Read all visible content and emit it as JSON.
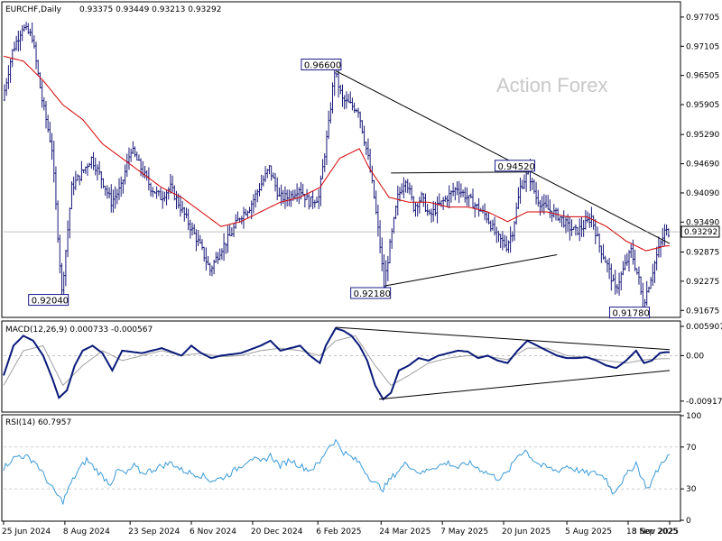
{
  "header": {
    "symbol": "EURCHF,Daily",
    "ohlc": "0.93375 0.93449 0.93213 0.93292"
  },
  "watermark": "Action Forex",
  "colors": {
    "bars": "#1a1a7a",
    "ma": "#d40000",
    "macd": "#0b1a7a",
    "signal": "#a0a0a0",
    "rsi": "#3a9ad9",
    "trend": "#000000",
    "grid": "#b0b0b0"
  },
  "chart_data": [
    {
      "type": "ohlc",
      "name": "price",
      "title": "EURCHF,Daily",
      "ylim": [
        0.9155,
        0.98
      ],
      "y_ticks": [
        "0.97705",
        "0.97105",
        "0.96505",
        "0.95905",
        "0.95290",
        "0.94690",
        "0.94090",
        "0.93490",
        "0.92875",
        "0.92275",
        "0.91675"
      ],
      "y_tick_values": [
        0.97705,
        0.97105,
        0.96505,
        0.95905,
        0.9529,
        0.9469,
        0.9409,
        0.9349,
        0.92875,
        0.92275,
        0.91675
      ],
      "current_price": "0.93292",
      "current_value": 0.93292,
      "price_path": [
        [
          0,
          0.96
        ],
        [
          5,
          0.97
        ],
        [
          10,
          0.975
        ],
        [
          15,
          0.973
        ],
        [
          20,
          0.96
        ],
        [
          25,
          0.95
        ],
        [
          30,
          0.9205
        ],
        [
          35,
          0.942
        ],
        [
          40,
          0.945
        ],
        [
          45,
          0.948
        ],
        [
          50,
          0.944
        ],
        [
          55,
          0.939
        ],
        [
          60,
          0.942
        ],
        [
          65,
          0.95
        ],
        [
          70,
          0.946
        ],
        [
          75,
          0.942
        ],
        [
          80,
          0.94
        ],
        [
          85,
          0.942
        ],
        [
          90,
          0.938
        ],
        [
          95,
          0.934
        ],
        [
          100,
          0.93
        ],
        [
          105,
          0.925
        ],
        [
          110,
          0.929
        ],
        [
          115,
          0.932
        ],
        [
          120,
          0.936
        ],
        [
          125,
          0.938
        ],
        [
          130,
          0.942
        ],
        [
          135,
          0.946
        ],
        [
          140,
          0.94
        ],
        [
          145,
          0.94
        ],
        [
          150,
          0.942
        ],
        [
          155,
          0.939
        ],
        [
          160,
          0.94
        ],
        [
          165,
          0.955
        ],
        [
          168,
          0.966
        ],
        [
          172,
          0.96
        ],
        [
          176,
          0.959
        ],
        [
          180,
          0.958
        ],
        [
          185,
          0.948
        ],
        [
          188,
          0.94
        ],
        [
          191,
          0.93
        ],
        [
          193,
          0.9218
        ],
        [
          196,
          0.93
        ],
        [
          200,
          0.94
        ],
        [
          204,
          0.944
        ],
        [
          208,
          0.938
        ],
        [
          212,
          0.94
        ],
        [
          216,
          0.936
        ],
        [
          220,
          0.938
        ],
        [
          225,
          0.94
        ],
        [
          230,
          0.942
        ],
        [
          235,
          0.94
        ],
        [
          240,
          0.938
        ],
        [
          245,
          0.936
        ],
        [
          250,
          0.932
        ],
        [
          255,
          0.93
        ],
        [
          258,
          0.933
        ],
        [
          262,
          0.942
        ],
        [
          266,
          0.9452
        ],
        [
          270,
          0.94
        ],
        [
          274,
          0.938
        ],
        [
          278,
          0.937
        ],
        [
          282,
          0.936
        ],
        [
          286,
          0.934
        ],
        [
          290,
          0.933
        ],
        [
          294,
          0.934
        ],
        [
          298,
          0.936
        ],
        [
          302,
          0.93
        ],
        [
          306,
          0.926
        ],
        [
          310,
          0.921
        ],
        [
          314,
          0.925
        ],
        [
          318,
          0.929
        ],
        [
          322,
          0.923
        ],
        [
          324,
          0.9178
        ],
        [
          327,
          0.922
        ],
        [
          331,
          0.928
        ],
        [
          335,
          0.9329
        ]
      ],
      "ma_path": [
        [
          0,
          0.969
        ],
        [
          10,
          0.968
        ],
        [
          20,
          0.964
        ],
        [
          30,
          0.959
        ],
        [
          40,
          0.956
        ],
        [
          50,
          0.951
        ],
        [
          60,
          0.948
        ],
        [
          70,
          0.945
        ],
        [
          80,
          0.942
        ],
        [
          90,
          0.94
        ],
        [
          100,
          0.937
        ],
        [
          110,
          0.934
        ],
        [
          120,
          0.935
        ],
        [
          130,
          0.937
        ],
        [
          140,
          0.939
        ],
        [
          150,
          0.94
        ],
        [
          160,
          0.942
        ],
        [
          170,
          0.948
        ],
        [
          180,
          0.95
        ],
        [
          185,
          0.946
        ],
        [
          195,
          0.94
        ],
        [
          205,
          0.939
        ],
        [
          215,
          0.939
        ],
        [
          225,
          0.938
        ],
        [
          235,
          0.938
        ],
        [
          245,
          0.937
        ],
        [
          255,
          0.935
        ],
        [
          265,
          0.937
        ],
        [
          275,
          0.937
        ],
        [
          285,
          0.936
        ],
        [
          295,
          0.936
        ],
        [
          305,
          0.934
        ],
        [
          315,
          0.931
        ],
        [
          325,
          0.929
        ],
        [
          335,
          0.93
        ]
      ],
      "labels": [
        {
          "text": "0.96600",
          "i": 168,
          "value": 0.966
        },
        {
          "text": "0.94520",
          "i": 266,
          "value": 0.9452
        },
        {
          "text": "0.92040",
          "i": 30,
          "value": 0.9204
        },
        {
          "text": "0.92180",
          "i": 193,
          "value": 0.9218
        },
        {
          "text": "0.91780",
          "i": 324,
          "value": 0.9178
        }
      ],
      "trendlines": [
        {
          "from": [
            168,
            0.966
          ],
          "to": [
            337,
            0.9305
          ]
        },
        {
          "from": [
            193,
            0.9218
          ],
          "to": [
            280,
            0.9282
          ]
        },
        {
          "from": [
            196,
            0.945
          ],
          "to": [
            266,
            0.9452
          ]
        }
      ]
    },
    {
      "type": "line",
      "name": "macd",
      "title": "MACD(12,26,9) 0.000733 -0.000567",
      "ylim": [
        -0.0112,
        0.0068
      ],
      "y_ticks": [
        "0.005907",
        "0.00",
        "-0.009175"
      ],
      "y_tick_values": [
        0.005907,
        0,
        -0.009175
      ],
      "macd_path": [
        [
          0,
          -0.004
        ],
        [
          5,
          0.002
        ],
        [
          10,
          0.004
        ],
        [
          15,
          0.003
        ],
        [
          20,
          0.0
        ],
        [
          25,
          -0.005
        ],
        [
          28,
          -0.0085
        ],
        [
          32,
          -0.007
        ],
        [
          36,
          -0.002
        ],
        [
          40,
          0.001
        ],
        [
          45,
          0.002
        ],
        [
          50,
          0.0005
        ],
        [
          55,
          -0.003
        ],
        [
          60,
          0.001
        ],
        [
          70,
          0.0005
        ],
        [
          80,
          0.0015
        ],
        [
          90,
          0.0
        ],
        [
          95,
          0.002
        ],
        [
          100,
          0.0005
        ],
        [
          105,
          -0.0005
        ],
        [
          110,
          0.0
        ],
        [
          120,
          0.0005
        ],
        [
          130,
          0.002
        ],
        [
          135,
          0.003
        ],
        [
          140,
          0.001
        ],
        [
          150,
          0.002
        ],
        [
          155,
          0.0
        ],
        [
          160,
          -0.0015
        ],
        [
          163,
          0.002
        ],
        [
          168,
          0.0055
        ],
        [
          172,
          0.005
        ],
        [
          176,
          0.004
        ],
        [
          180,
          0.002
        ],
        [
          184,
          -0.001
        ],
        [
          188,
          -0.006
        ],
        [
          192,
          -0.0088
        ],
        [
          196,
          -0.0075
        ],
        [
          200,
          -0.003
        ],
        [
          205,
          -0.002
        ],
        [
          210,
          -0.0005
        ],
        [
          215,
          -0.001
        ],
        [
          220,
          0.0
        ],
        [
          225,
          0.0005
        ],
        [
          230,
          0.001
        ],
        [
          235,
          0.0008
        ],
        [
          240,
          -0.0005
        ],
        [
          245,
          0.0
        ],
        [
          250,
          -0.001
        ],
        [
          255,
          -0.0015
        ],
        [
          260,
          0.001
        ],
        [
          265,
          0.003
        ],
        [
          270,
          0.002
        ],
        [
          275,
          0.001
        ],
        [
          280,
          0.0
        ],
        [
          285,
          -0.0005
        ],
        [
          290,
          -0.0005
        ],
        [
          295,
          -0.0003
        ],
        [
          300,
          -0.001
        ],
        [
          305,
          -0.002
        ],
        [
          310,
          -0.0025
        ],
        [
          315,
          -0.001
        ],
        [
          320,
          0.001
        ],
        [
          324,
          -0.0015
        ],
        [
          328,
          -0.001
        ],
        [
          332,
          0.0005
        ],
        [
          335,
          0.0007
        ]
      ],
      "signal_path": [
        [
          0,
          -0.006
        ],
        [
          10,
          0.001
        ],
        [
          20,
          0.002
        ],
        [
          30,
          -0.006
        ],
        [
          40,
          -0.002
        ],
        [
          50,
          0.001
        ],
        [
          60,
          -0.001
        ],
        [
          70,
          0.0
        ],
        [
          80,
          0.001
        ],
        [
          90,
          0.0
        ],
        [
          100,
          0.0005
        ],
        [
          110,
          -0.0002
        ],
        [
          120,
          0.0
        ],
        [
          130,
          0.001
        ],
        [
          140,
          0.0015
        ],
        [
          150,
          0.001
        ],
        [
          160,
          0.0
        ],
        [
          168,
          0.003
        ],
        [
          178,
          0.004
        ],
        [
          188,
          -0.002
        ],
        [
          196,
          -0.006
        ],
        [
          205,
          -0.004
        ],
        [
          215,
          -0.0015
        ],
        [
          225,
          -0.0005
        ],
        [
          235,
          0.0
        ],
        [
          245,
          -0.0002
        ],
        [
          255,
          -0.0008
        ],
        [
          265,
          0.0015
        ],
        [
          275,
          0.0015
        ],
        [
          285,
          0.0
        ],
        [
          295,
          -0.0004
        ],
        [
          305,
          -0.001
        ],
        [
          315,
          -0.0015
        ],
        [
          325,
          -0.0008
        ],
        [
          335,
          -0.0006
        ]
      ],
      "trendlines": [
        {
          "from": [
            168,
            0.0057
          ],
          "to": [
            337,
            0.0012
          ]
        },
        {
          "from": [
            190,
            -0.0088
          ],
          "to": [
            337,
            -0.003
          ]
        }
      ]
    },
    {
      "type": "line",
      "name": "rsi",
      "title": "RSI(14) 60.7957",
      "ylim": [
        0,
        100
      ],
      "y_ticks": [
        "100",
        "70",
        "30",
        "0"
      ],
      "y_tick_values": [
        100,
        70,
        30,
        0
      ],
      "levels": [
        70,
        30
      ],
      "rsi_path": [
        [
          0,
          50
        ],
        [
          4,
          58
        ],
        [
          8,
          62
        ],
        [
          12,
          60
        ],
        [
          16,
          56
        ],
        [
          20,
          44
        ],
        [
          24,
          32
        ],
        [
          28,
          22
        ],
        [
          30,
          18
        ],
        [
          34,
          35
        ],
        [
          38,
          48
        ],
        [
          42,
          58
        ],
        [
          46,
          50
        ],
        [
          50,
          42
        ],
        [
          54,
          35
        ],
        [
          58,
          48
        ],
        [
          62,
          44
        ],
        [
          66,
          52
        ],
        [
          70,
          45
        ],
        [
          75,
          48
        ],
        [
          80,
          52
        ],
        [
          85,
          55
        ],
        [
          90,
          48
        ],
        [
          95,
          45
        ],
        [
          100,
          43
        ],
        [
          105,
          38
        ],
        [
          110,
          40
        ],
        [
          115,
          45
        ],
        [
          120,
          52
        ],
        [
          125,
          60
        ],
        [
          130,
          55
        ],
        [
          135,
          62
        ],
        [
          140,
          52
        ],
        [
          145,
          58
        ],
        [
          150,
          52
        ],
        [
          155,
          48
        ],
        [
          160,
          55
        ],
        [
          164,
          70
        ],
        [
          168,
          76
        ],
        [
          172,
          65
        ],
        [
          176,
          60
        ],
        [
          180,
          55
        ],
        [
          184,
          44
        ],
        [
          188,
          35
        ],
        [
          192,
          30
        ],
        [
          196,
          40
        ],
        [
          200,
          48
        ],
        [
          204,
          55
        ],
        [
          208,
          48
        ],
        [
          212,
          45
        ],
        [
          216,
          50
        ],
        [
          220,
          52
        ],
        [
          225,
          55
        ],
        [
          230,
          50
        ],
        [
          235,
          55
        ],
        [
          240,
          50
        ],
        [
          245,
          45
        ],
        [
          250,
          40
        ],
        [
          255,
          45
        ],
        [
          260,
          62
        ],
        [
          264,
          67
        ],
        [
          268,
          58
        ],
        [
          272,
          52
        ],
        [
          276,
          50
        ],
        [
          280,
          47
        ],
        [
          285,
          52
        ],
        [
          290,
          48
        ],
        [
          295,
          45
        ],
        [
          300,
          45
        ],
        [
          305,
          40
        ],
        [
          308,
          26
        ],
        [
          312,
          35
        ],
        [
          316,
          45
        ],
        [
          320,
          55
        ],
        [
          323,
          40
        ],
        [
          326,
          30
        ],
        [
          330,
          45
        ],
        [
          334,
          58
        ],
        [
          336,
          61
        ]
      ]
    }
  ],
  "x_axis": {
    "count": 337,
    "labels": [
      {
        "text": "25 Jun 2024",
        "i": 0
      },
      {
        "text": "8 Aug 2024",
        "i": 31
      },
      {
        "text": "23 Sep 2024",
        "i": 64
      },
      {
        "text": "6 Nov 2024",
        "i": 95
      },
      {
        "text": "20 Dec 2024",
        "i": 126
      },
      {
        "text": "6 Feb 2025",
        "i": 159
      },
      {
        "text": "24 Mar 2025",
        "i": 191
      },
      {
        "text": "7 May 2025",
        "i": 222
      },
      {
        "text": "20 Jun 2025",
        "i": 253
      },
      {
        "text": "5 Aug 2025",
        "i": 285
      },
      {
        "text": "18 Sep 2025",
        "i": 316
      },
      {
        "text": "3 Nov 2025",
        "i": 337
      }
    ]
  }
}
